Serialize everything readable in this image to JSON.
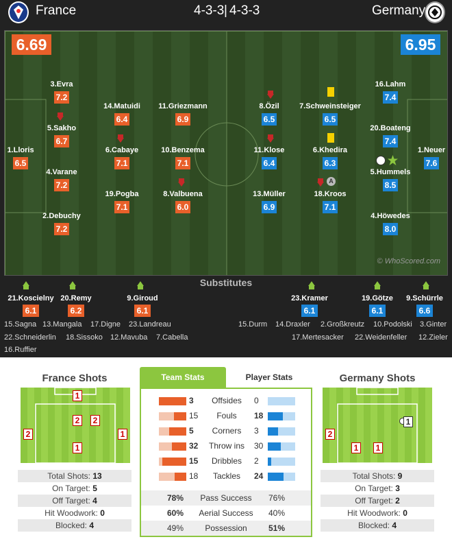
{
  "header": {
    "home_team": "France",
    "away_team": "Germany",
    "home_formation": "4-3-3",
    "separator": "|",
    "away_formation": "4-3-3"
  },
  "ratings": {
    "home": "6.69",
    "away": "6.95"
  },
  "watermark": "© WhoScored.com",
  "home_players": [
    {
      "name": "1.Lloris",
      "rating": "6.5"
    },
    {
      "name": "3.Evra",
      "rating": "7.2"
    },
    {
      "name": "5.Sakho",
      "rating": "6.7"
    },
    {
      "name": "4.Varane",
      "rating": "7.2"
    },
    {
      "name": "2.Debuchy",
      "rating": "7.2"
    },
    {
      "name": "14.Matuidi",
      "rating": "6.4"
    },
    {
      "name": "6.Cabaye",
      "rating": "7.1"
    },
    {
      "name": "19.Pogba",
      "rating": "7.1"
    },
    {
      "name": "11.Griezmann",
      "rating": "6.9"
    },
    {
      "name": "10.Benzema",
      "rating": "7.1"
    },
    {
      "name": "8.Valbuena",
      "rating": "6.0"
    }
  ],
  "away_players": [
    {
      "name": "1.Neuer",
      "rating": "7.6"
    },
    {
      "name": "16.Lahm",
      "rating": "7.4"
    },
    {
      "name": "20.Boateng",
      "rating": "7.4"
    },
    {
      "name": "5.Hummels",
      "rating": "8.5"
    },
    {
      "name": "4.Höwedes",
      "rating": "8.0"
    },
    {
      "name": "7.Schweinsteiger",
      "rating": "6.5"
    },
    {
      "name": "6.Khedira",
      "rating": "6.3"
    },
    {
      "name": "18.Kroos",
      "rating": "7.1"
    },
    {
      "name": "8.Özil",
      "rating": "6.5"
    },
    {
      "name": "11.Klose",
      "rating": "6.4"
    },
    {
      "name": "13.Müller",
      "rating": "6.9"
    }
  ],
  "substitutes_title": "Substitutes",
  "home_subs": [
    {
      "name": "21.Koscielny",
      "rating": "6.1"
    },
    {
      "name": "20.Remy",
      "rating": "6.2"
    },
    {
      "name": "9.Giroud",
      "rating": "6.1"
    }
  ],
  "away_subs": [
    {
      "name": "23.Kramer",
      "rating": "6.1"
    },
    {
      "name": "19.Götze",
      "rating": "6.1"
    },
    {
      "name": "9.Schürrle",
      "rating": "6.6"
    }
  ],
  "home_bench": [
    "15.Sagna",
    "13.Mangala",
    "17.Digne",
    "23.Landreau",
    "22.Schneiderlin",
    "18.Sissoko",
    "12.Mavuba",
    "7.Cabella",
    "16.Ruffier"
  ],
  "away_bench": [
    "15.Durm",
    "14.Draxler",
    "2.Großkreutz",
    "10.Podolski",
    "3.Ginter",
    "17.Mertesacker",
    "22.Weidenfeller",
    "12.Zieler"
  ],
  "home_shots": {
    "title": "France Shots",
    "boxes": [
      "1",
      "2",
      "2",
      "2",
      "1",
      "1"
    ],
    "stats": [
      {
        "label": "Total Shots:",
        "value": "13"
      },
      {
        "label": "On Target:",
        "value": "5"
      },
      {
        "label": "Off Target:",
        "value": "4"
      },
      {
        "label": "Hit Woodwork:",
        "value": "0"
      },
      {
        "label": "Blocked:",
        "value": "4"
      }
    ]
  },
  "away_shots": {
    "title": "Germany Shots",
    "boxes": [
      "1",
      "2",
      "1",
      "1"
    ],
    "stats": [
      {
        "label": "Total Shots:",
        "value": "9"
      },
      {
        "label": "On Target:",
        "value": "3"
      },
      {
        "label": "Off Target:",
        "value": "2"
      },
      {
        "label": "Hit Woodwork:",
        "value": "0"
      },
      {
        "label": "Blocked:",
        "value": "4"
      }
    ]
  },
  "tabs": {
    "team_stats": "Team Stats",
    "player_stats": "Player Stats"
  },
  "team_stats": [
    {
      "label": "Offsides",
      "home": "3",
      "away": "0",
      "home_pct": 100,
      "away_pct": 0
    },
    {
      "label": "Fouls",
      "home": "15",
      "away": "18",
      "home_pct": 45,
      "away_pct": 55
    },
    {
      "label": "Corners",
      "home": "5",
      "away": "3",
      "home_pct": 62,
      "away_pct": 38
    },
    {
      "label": "Throw ins",
      "home": "32",
      "away": "30",
      "home_pct": 52,
      "away_pct": 48
    },
    {
      "label": "Dribbles",
      "home": "15",
      "away": "2",
      "home_pct": 88,
      "away_pct": 12
    },
    {
      "label": "Tackles",
      "home": "18",
      "away": "24",
      "home_pct": 43,
      "away_pct": 57
    }
  ],
  "team_stats_bottom": [
    {
      "label": "Pass Success",
      "home": "78%",
      "away": "76%"
    },
    {
      "label": "Aerial Success",
      "home": "60%",
      "away": "40%"
    },
    {
      "label": "Possession",
      "home": "49%",
      "away": "51%"
    }
  ],
  "colors": {
    "home": "#e8602a",
    "away": "#1b84d6",
    "pitch_green": "#8cc63f"
  }
}
